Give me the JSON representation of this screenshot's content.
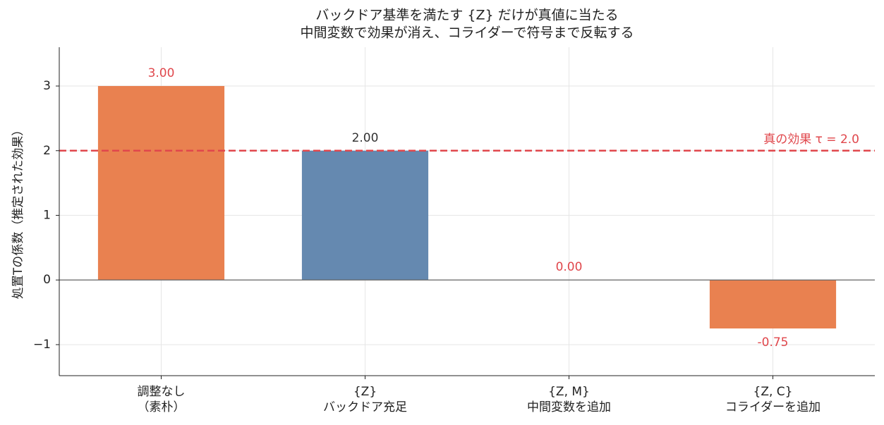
{
  "chart_data": {
    "type": "bar",
    "title": [
      "バックドア基準を満たす {Z} だけが真値に当たる",
      "中間変数で効果が消え、コライダーで符号まで反転する"
    ],
    "y_label": "処置Tの係数（推定された効果）",
    "categories": [
      [
        "調整なし",
        "（素朴）"
      ],
      [
        "{Z}",
        "バックドア充足"
      ],
      [
        "{Z, M}",
        "中間変数を追加"
      ],
      [
        "{Z, C}",
        "コライダーを追加"
      ]
    ],
    "values": [
      3.0,
      2.0,
      0.0,
      -0.75
    ],
    "value_labels": [
      "3.00",
      "2.00",
      "0.00",
      "-0.75"
    ],
    "colors": [
      "#e98150",
      "#6589b0",
      "#e98150",
      "#e98150"
    ],
    "label_colors": [
      "#e0474c",
      "#333333",
      "#e0474c",
      "#e0474c"
    ],
    "reference_line": {
      "value": 2.0,
      "label": "真の効果 τ = 2.0",
      "color": "#e0474c"
    },
    "ylim": [
      -1.48,
      3.6
    ],
    "yticks": [
      {
        "value": -1,
        "label": "−1"
      },
      0,
      1,
      2,
      3
    ],
    "grid": true
  }
}
